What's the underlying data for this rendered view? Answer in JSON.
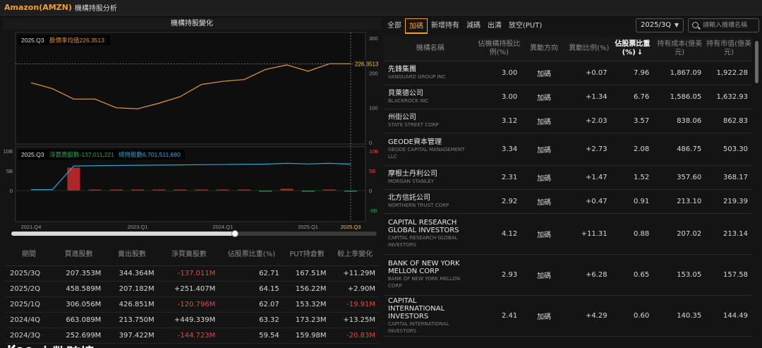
{
  "app": {
    "ticker": "Amazon(AMZN)",
    "title": "機構持股分析"
  },
  "left": {
    "chart_title": "機構持股變化",
    "price_label": {
      "quarter": "2025.Q3",
      "text": "股價季均值226.3513"
    },
    "price_marker": "226.3513",
    "flow_label": {
      "quarter": "2025.Q3",
      "net_text": "淨買賣股數-137,011,221",
      "hold_text": "總持股數6,701,511,680"
    },
    "history": {
      "headers": [
        "期間",
        "買進股數",
        "賣出股數",
        "淨買賣股數",
        "佔股票比重(%)",
        "PUT持倉數",
        "較上季變化"
      ],
      "rows": [
        {
          "period": "2025/3Q",
          "buy": "207.353M",
          "sell": "344.364M",
          "net": "-137.011M",
          "weight": "62.71",
          "put": "167.51M",
          "change": "+11.29M"
        },
        {
          "period": "2025/2Q",
          "buy": "458.589M",
          "sell": "207.182M",
          "net": "+251.407M",
          "weight": "64.15",
          "put": "156.22M",
          "change": "+2.90M"
        },
        {
          "period": "2025/1Q",
          "buy": "306.056M",
          "sell": "426.851M",
          "net": "-120.796M",
          "weight": "62.07",
          "put": "153.32M",
          "change": "-19.91M"
        },
        {
          "period": "2024/4Q",
          "buy": "663.089M",
          "sell": "213.750M",
          "net": "+449.339M",
          "weight": "63.32",
          "put": "173.23M",
          "change": "+13.25M"
        },
        {
          "period": "2024/3Q",
          "buy": "252.699M",
          "sell": "397.422M",
          "net": "-144.723M",
          "weight": "59.54",
          "put": "159.98M",
          "change": "-20.83M"
        }
      ]
    },
    "watermark": "大数跨境"
  },
  "right": {
    "tabs": [
      "全部",
      "加碼",
      "新增持有",
      "減碼",
      "出清",
      "放空(PUT)"
    ],
    "active_tab": 1,
    "quarter": "2025/3Q",
    "search_placeholder": "請輸入機構名稱",
    "headers": [
      "機構名稱",
      "佔機構持股比例(%)",
      "異動方向",
      "異動比例(%)",
      "佔股票比重(%)",
      "持有成本(億美元)",
      "持有市值(億美元)"
    ],
    "sort_arrow": "↓",
    "rows": [
      {
        "cn": "先鋒集團",
        "en": "VANGUARD GROUP INC",
        "pct": "3.00",
        "dir": "加碼",
        "chg": "+0.07",
        "weight": "7.96",
        "cost": "1,867.09",
        "value": "1,922.28"
      },
      {
        "cn": "貝萊德公司",
        "en": "BLACKROCK INC",
        "pct": "3.00",
        "dir": "加碼",
        "chg": "+1.34",
        "weight": "6.76",
        "cost": "1,586.05",
        "value": "1,632.93"
      },
      {
        "cn": "州街公司",
        "en": "STATE STREET CORP",
        "pct": "3.12",
        "dir": "加碼",
        "chg": "+2.03",
        "weight": "3.57",
        "cost": "838.06",
        "value": "862.83"
      },
      {
        "cn": "GEODE資本管理",
        "en": "GEODE CAPITAL MANAGEMENT LLC",
        "pct": "3.34",
        "dir": "加碼",
        "chg": "+2.73",
        "weight": "2.08",
        "cost": "486.75",
        "value": "503.30"
      },
      {
        "cn": "摩根士丹利公司",
        "en": "MORGAN STANLEY",
        "pct": "2.31",
        "dir": "加碼",
        "chg": "+1.47",
        "weight": "1.52",
        "cost": "357.60",
        "value": "368.17"
      },
      {
        "cn": "北方信託公司",
        "en": "NORTHERN TRUST CORP",
        "pct": "2.92",
        "dir": "加碼",
        "chg": "+0.47",
        "weight": "0.91",
        "cost": "213.10",
        "value": "219.39"
      },
      {
        "cn": "CAPITAL RESEARCH GLOBAL INVESTORS",
        "en": "CAPITAL RESEARCH GLOBAL INVESTORS",
        "pct": "4.12",
        "dir": "加碼",
        "chg": "+11.31",
        "weight": "0.88",
        "cost": "207.02",
        "value": "213.14"
      },
      {
        "cn": "BANK OF NEW YORK MELLON CORP",
        "en": "BANK OF NEW YORK MELLON CORP",
        "pct": "2.93",
        "dir": "加碼",
        "chg": "+6.28",
        "weight": "0.65",
        "cost": "153.05",
        "value": "157.58"
      },
      {
        "cn": "CAPITAL INTERNATIONAL INVESTORS",
        "en": "CAPITAL INTERNATIONAL INVESTORS",
        "pct": "2.41",
        "dir": "加碼",
        "chg": "+4.29",
        "weight": "0.60",
        "cost": "140.35",
        "value": "144.49"
      }
    ]
  },
  "colors": {
    "accent": "#f0a030",
    "price_line": "#e89a2e",
    "hold_line": "#29a8d8",
    "net_bar": "#c0282e",
    "negative": "#e04848",
    "positive_bar": "#26a65b"
  },
  "chart_data": [
    {
      "type": "line",
      "title": "股價季均值",
      "x": [
        "2021.Q4",
        "2022.Q1",
        "2022.Q2",
        "2022.Q3",
        "2022.Q4",
        "2023.Q1",
        "2023.Q2",
        "2023.Q3",
        "2023.Q4",
        "2024.Q1",
        "2024.Q2",
        "2024.Q3",
        "2024.Q4",
        "2025.Q1",
        "2025.Q2",
        "2025.Q3"
      ],
      "values": [
        172,
        155,
        125,
        125,
        100,
        97,
        113,
        132,
        167,
        176,
        181,
        210,
        223,
        205,
        226.3513,
        226.3513
      ],
      "ylim": [
        0,
        300
      ],
      "ticks": [
        "0",
        "100",
        "200",
        "300"
      ],
      "x_ticks": [
        "2021.Q4",
        "2023.Q1",
        "2024.Q1",
        "2025.Q1",
        "2025.Q3"
      ]
    },
    {
      "type": "line",
      "title": "總持股數 / 淨買賣股數",
      "x": [
        "2021.Q4",
        "2022.Q1",
        "2022.Q2",
        "2022.Q3",
        "2022.Q4",
        "2023.Q1",
        "2023.Q2",
        "2023.Q3",
        "2023.Q4",
        "2024.Q1",
        "2024.Q2",
        "2024.Q3",
        "2024.Q4",
        "2025.Q1",
        "2025.Q2",
        "2025.Q3"
      ],
      "series": [
        {
          "name": "總持股數",
          "unit": "shares",
          "values": [
            0.25,
            0.25,
            6.2,
            6.3,
            6.35,
            6.4,
            6.45,
            6.5,
            6.55,
            6.6,
            6.65,
            6.7,
            6.9,
            6.75,
            6.9,
            6.7015
          ]
        },
        {
          "name": "淨買賣股數",
          "unit": "shares",
          "values": [
            0,
            0,
            5.8,
            0.08,
            0.1,
            0.05,
            0.12,
            0.05,
            0.08,
            0.1,
            0.05,
            -0.14,
            0.45,
            -0.12,
            0.25,
            -0.137
          ]
        }
      ],
      "left_ticks": [
        "0",
        "5B",
        "10B"
      ],
      "right_ticks": [
        "-5B",
        "0",
        "5B",
        "10B"
      ]
    }
  ]
}
